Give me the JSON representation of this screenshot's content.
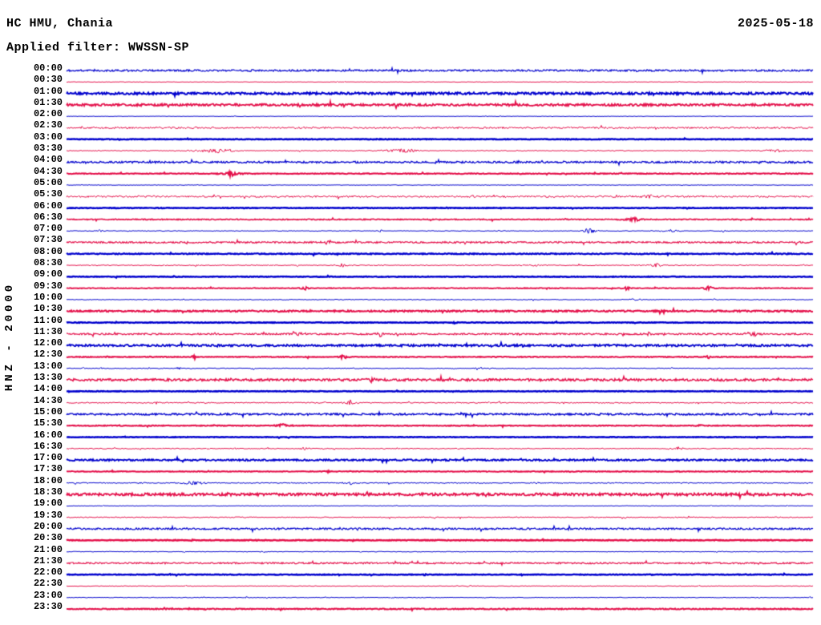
{
  "header": {
    "station_title": "HC HMU, Chania",
    "date": "2025-05-18",
    "filter_label": "Applied filter: WWSSN-SP"
  },
  "axis": {
    "channel_label": "HNZ - 20000"
  },
  "colors": {
    "blue": "#0000cd",
    "red": "#e4114b",
    "text": "#000000",
    "background": "#ffffff"
  },
  "chart_data": {
    "type": "line",
    "subtype": "helicorder",
    "title": "HC HMU, Chania",
    "station": "HMU",
    "network": "HC",
    "channel": "HNZ",
    "gain_scale": 20000,
    "date": "2025-05-18",
    "applied_filter": "WWSSN-SP",
    "minutes_per_row": 30,
    "row_count": 48,
    "x_range_minutes": [
      0,
      30
    ],
    "legend": "alternating blue (on the hour) and red (on the half hour) 30-minute traces",
    "rows": [
      {
        "time": "00:00",
        "color": "blue",
        "noise": 1.1,
        "thickness": 1.2,
        "events": []
      },
      {
        "time": "00:30",
        "color": "red",
        "noise": 0.3,
        "thickness": 1.0,
        "events": []
      },
      {
        "time": "01:00",
        "color": "blue",
        "noise": 1.3,
        "thickness": 2.0,
        "events": []
      },
      {
        "time": "01:30",
        "color": "red",
        "noise": 1.3,
        "thickness": 1.8,
        "events": []
      },
      {
        "time": "02:00",
        "color": "blue",
        "noise": 0.25,
        "thickness": 1.0,
        "events": []
      },
      {
        "time": "02:30",
        "color": "red",
        "noise": 1.1,
        "thickness": 1.0,
        "events": []
      },
      {
        "time": "03:00",
        "color": "blue",
        "noise": 0.4,
        "thickness": 2.4,
        "events": []
      },
      {
        "time": "03:30",
        "color": "red",
        "noise": 0.5,
        "thickness": 1.0,
        "events": [
          [
            0.2,
            60,
            1.8
          ],
          [
            0.45,
            45,
            2.0
          ],
          [
            0.95,
            40,
            1.3
          ]
        ]
      },
      {
        "time": "04:00",
        "color": "blue",
        "noise": 1.1,
        "thickness": 1.3,
        "events": []
      },
      {
        "time": "04:30",
        "color": "red",
        "noise": 0.5,
        "thickness": 2.0,
        "events": [
          [
            0.22,
            20,
            2.3
          ]
        ]
      },
      {
        "time": "05:00",
        "color": "blue",
        "noise": 0.3,
        "thickness": 1.0,
        "events": []
      },
      {
        "time": "05:30",
        "color": "red",
        "noise": 1.1,
        "thickness": 1.0,
        "events": [
          [
            0.78,
            22,
            1.8
          ]
        ]
      },
      {
        "time": "06:00",
        "color": "blue",
        "noise": 0.4,
        "thickness": 2.4,
        "events": []
      },
      {
        "time": "06:30",
        "color": "red",
        "noise": 0.6,
        "thickness": 1.6,
        "events": [
          [
            0.76,
            26,
            1.8
          ]
        ]
      },
      {
        "time": "07:00",
        "color": "blue",
        "noise": 0.4,
        "thickness": 1.0,
        "events": [
          [
            0.7,
            15,
            4.2
          ],
          [
            0.045,
            8,
            1.4
          ],
          [
            0.42,
            8,
            1.3
          ],
          [
            0.81,
            30,
            1.2
          ],
          [
            0.88,
            6,
            1.3
          ]
        ]
      },
      {
        "time": "07:30",
        "color": "red",
        "noise": 1.0,
        "thickness": 1.2,
        "events": [
          [
            0.35,
            12,
            2.2
          ]
        ]
      },
      {
        "time": "08:00",
        "color": "blue",
        "noise": 0.6,
        "thickness": 2.2,
        "events": []
      },
      {
        "time": "08:30",
        "color": "red",
        "noise": 0.55,
        "thickness": 1.0,
        "events": [
          [
            0.37,
            12,
            2.0
          ],
          [
            0.63,
            10,
            1.6
          ],
          [
            0.79,
            16,
            2.0
          ]
        ]
      },
      {
        "time": "09:00",
        "color": "blue",
        "noise": 0.4,
        "thickness": 2.4,
        "events": []
      },
      {
        "time": "09:30",
        "color": "red",
        "noise": 0.45,
        "thickness": 1.8,
        "events": [
          [
            0.32,
            10,
            1.8
          ],
          [
            0.75,
            10,
            1.5
          ],
          [
            0.86,
            12,
            1.8
          ]
        ]
      },
      {
        "time": "10:00",
        "color": "blue",
        "noise": 0.45,
        "thickness": 1.0,
        "events": [
          [
            0.76,
            20,
            1.0
          ]
        ]
      },
      {
        "time": "10:30",
        "color": "red",
        "noise": 0.9,
        "thickness": 2.0,
        "events": []
      },
      {
        "time": "11:00",
        "color": "blue",
        "noise": 0.4,
        "thickness": 2.4,
        "events": [
          [
            0.52,
            8,
            1.0
          ]
        ]
      },
      {
        "time": "11:30",
        "color": "red",
        "noise": 1.0,
        "thickness": 1.2,
        "events": [
          [
            0.31,
            12,
            2.2
          ],
          [
            0.42,
            12,
            2.2
          ],
          [
            0.78,
            8,
            1.6
          ],
          [
            0.92,
            20,
            2.0
          ]
        ]
      },
      {
        "time": "12:00",
        "color": "blue",
        "noise": 1.2,
        "thickness": 1.8,
        "events": [
          [
            0.61,
            8,
            1.3
          ]
        ]
      },
      {
        "time": "12:30",
        "color": "red",
        "noise": 0.5,
        "thickness": 2.0,
        "events": [
          [
            0.17,
            8,
            1.8
          ],
          [
            0.37,
            10,
            2.0
          ],
          [
            0.86,
            8,
            1.4
          ]
        ]
      },
      {
        "time": "13:00",
        "color": "blue",
        "noise": 0.5,
        "thickness": 1.0,
        "events": [
          [
            0.15,
            8,
            1.3
          ],
          [
            0.25,
            6,
            1.3
          ],
          [
            0.35,
            6,
            1.3
          ],
          [
            0.55,
            6,
            1.1
          ]
        ]
      },
      {
        "time": "13:30",
        "color": "red",
        "noise": 1.4,
        "thickness": 1.5,
        "events": [
          [
            0.41,
            10,
            1.8
          ]
        ]
      },
      {
        "time": "14:00",
        "color": "blue",
        "noise": 0.35,
        "thickness": 2.4,
        "events": []
      },
      {
        "time": "14:30",
        "color": "red",
        "noise": 0.65,
        "thickness": 1.0,
        "events": [
          [
            0.12,
            8,
            1.4
          ],
          [
            0.38,
            16,
            2.3
          ]
        ]
      },
      {
        "time": "15:00",
        "color": "blue",
        "noise": 1.1,
        "thickness": 1.4,
        "events": []
      },
      {
        "time": "15:30",
        "color": "red",
        "noise": 0.5,
        "thickness": 2.0,
        "events": [
          [
            0.29,
            18,
            1.8
          ],
          [
            0.85,
            10,
            1.3
          ]
        ]
      },
      {
        "time": "16:00",
        "color": "blue",
        "noise": 0.35,
        "thickness": 2.4,
        "events": []
      },
      {
        "time": "16:30",
        "color": "red",
        "noise": 0.55,
        "thickness": 1.0,
        "events": [
          [
            0.32,
            14,
            1.8
          ],
          [
            0.82,
            12,
            1.6
          ]
        ]
      },
      {
        "time": "17:00",
        "color": "blue",
        "noise": 1.0,
        "thickness": 1.8,
        "events": []
      },
      {
        "time": "17:30",
        "color": "red",
        "noise": 0.45,
        "thickness": 2.0,
        "events": [
          [
            0.35,
            6,
            1.1
          ]
        ]
      },
      {
        "time": "18:00",
        "color": "blue",
        "noise": 0.6,
        "thickness": 1.0,
        "events": [
          [
            0.17,
            30,
            2.2
          ],
          [
            0.1,
            8,
            1.3
          ],
          [
            0.38,
            26,
            1.3
          ],
          [
            0.63,
            8,
            1.3
          ]
        ]
      },
      {
        "time": "18:30",
        "color": "red",
        "noise": 1.5,
        "thickness": 1.8,
        "events": []
      },
      {
        "time": "19:00",
        "color": "blue",
        "noise": 0.35,
        "thickness": 1.0,
        "events": []
      },
      {
        "time": "19:30",
        "color": "red",
        "noise": 0.6,
        "thickness": 1.0,
        "events": []
      },
      {
        "time": "20:00",
        "color": "blue",
        "noise": 1.1,
        "thickness": 1.2,
        "events": []
      },
      {
        "time": "20:30",
        "color": "red",
        "noise": 0.45,
        "thickness": 2.4,
        "events": [
          [
            0.17,
            5,
            1.1
          ]
        ]
      },
      {
        "time": "21:00",
        "color": "blue",
        "noise": 0.4,
        "thickness": 1.0,
        "events": [
          [
            0.26,
            5,
            1.1
          ]
        ]
      },
      {
        "time": "21:30",
        "color": "red",
        "noise": 0.9,
        "thickness": 1.2,
        "events": []
      },
      {
        "time": "22:00",
        "color": "blue",
        "noise": 0.4,
        "thickness": 2.4,
        "events": [
          [
            0.48,
            6,
            0.9
          ]
        ]
      },
      {
        "time": "22:30",
        "color": "red",
        "noise": 0.4,
        "thickness": 1.0,
        "events": []
      },
      {
        "time": "23:00",
        "color": "blue",
        "noise": 0.4,
        "thickness": 1.0,
        "events": [
          [
            0.24,
            5,
            1.4
          ]
        ]
      },
      {
        "time": "23:30",
        "color": "red",
        "noise": 0.6,
        "thickness": 2.0,
        "events": []
      }
    ]
  }
}
